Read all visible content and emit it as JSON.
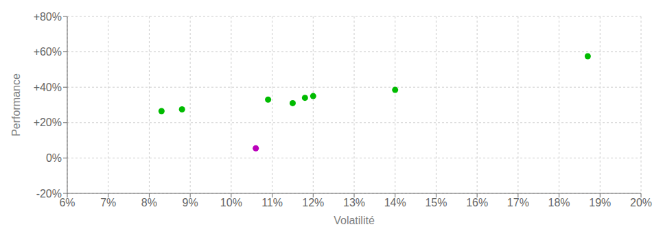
{
  "chart_data": {
    "type": "scatter",
    "xlabel": "Volatilité",
    "ylabel": "Performance",
    "xlim": [
      0.06,
      0.2
    ],
    "ylim": [
      -0.2,
      0.8
    ],
    "xticks": [
      {
        "value": 0.06,
        "label": "6%"
      },
      {
        "value": 0.07,
        "label": "7%"
      },
      {
        "value": 0.08,
        "label": "8%"
      },
      {
        "value": 0.09,
        "label": "9%"
      },
      {
        "value": 0.1,
        "label": "10%"
      },
      {
        "value": 0.11,
        "label": "11%"
      },
      {
        "value": 0.12,
        "label": "12%"
      },
      {
        "value": 0.13,
        "label": "13%"
      },
      {
        "value": 0.14,
        "label": "14%"
      },
      {
        "value": 0.15,
        "label": "15%"
      },
      {
        "value": 0.16,
        "label": "16%"
      },
      {
        "value": 0.17,
        "label": "17%"
      },
      {
        "value": 0.18,
        "label": "18%"
      },
      {
        "value": 0.19,
        "label": "19%"
      },
      {
        "value": 0.2,
        "label": "20%"
      }
    ],
    "yticks": [
      {
        "value": -0.2,
        "label": "-20%"
      },
      {
        "value": 0.0,
        "label": "0%"
      },
      {
        "value": 0.2,
        "label": "+20%"
      },
      {
        "value": 0.4,
        "label": "+40%"
      },
      {
        "value": 0.6,
        "label": "+60%"
      },
      {
        "value": 0.8,
        "label": "+80%"
      }
    ],
    "grid": true,
    "series": [
      {
        "color": "#00bb00",
        "x": [
          0.083,
          0.088,
          0.109,
          0.115,
          0.118,
          0.12,
          0.14,
          0.187
        ],
        "y": [
          0.265,
          0.275,
          0.33,
          0.31,
          0.34,
          0.35,
          0.385,
          0.575
        ]
      },
      {
        "color": "#bb00bb",
        "x": [
          0.106
        ],
        "y": [
          0.055
        ]
      }
    ]
  }
}
